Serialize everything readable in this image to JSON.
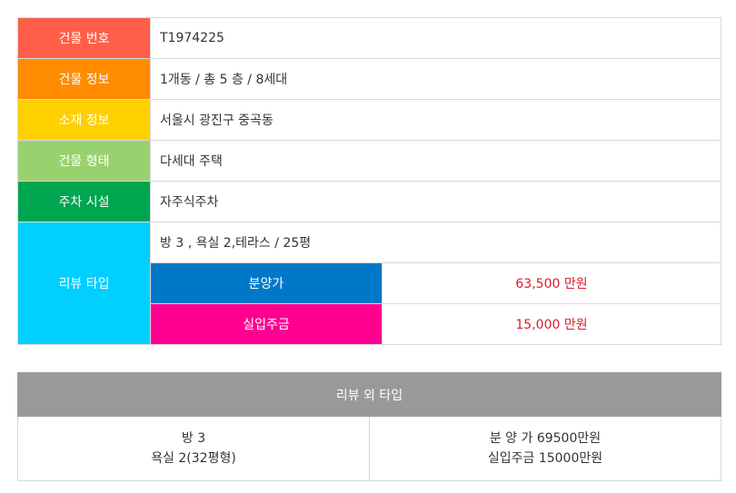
{
  "info": {
    "building_no": {
      "label": "건물 번호",
      "value": "T1974225",
      "color": "#ff5f49"
    },
    "building_info": {
      "label": "건물 정보",
      "value": "1개동 / 총 5 층 / 8세대",
      "color": "#ff8b00"
    },
    "location": {
      "label": "소재 정보",
      "value": "서울시 광진구 중곡동",
      "color": "#ffd000"
    },
    "building_type": {
      "label": "건물 형태",
      "value": "다세대 주택",
      "color": "#98d26e"
    },
    "parking": {
      "label": "주차 시설",
      "value": "자주식주차",
      "color": "#00a550"
    },
    "review_type": {
      "label": "리뷰 타입",
      "color": "#00cfff",
      "layout": "방 3 , 욕실 2,테라스 / 25평",
      "sale_price": {
        "label": "분양가",
        "value": "63,500 만원",
        "color": "#0078c8"
      },
      "real_payment": {
        "label": "실입주금",
        "value": "15,000 만원",
        "color": "#ff0090"
      }
    }
  },
  "outside": {
    "header": "리뷰 외 타입",
    "rooms_line1": "방 3",
    "rooms_line2": "욕실 2(32평형)",
    "price_line1": "분 양 가 69500만원",
    "price_line2": "실입주금 15000만원"
  }
}
